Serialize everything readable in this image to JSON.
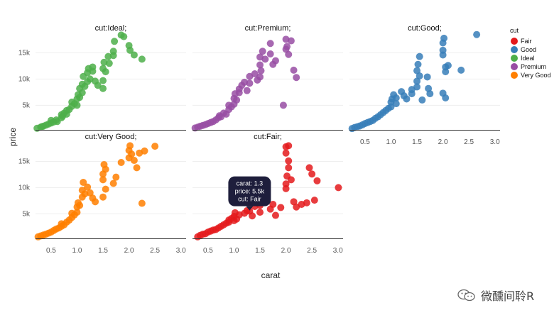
{
  "chart_data": {
    "type": "scatter",
    "facet_by": "cut",
    "xlabel": "carat",
    "ylabel": "price",
    "xlim": [
      0.2,
      3.1
    ],
    "ylim": [
      300,
      19000
    ],
    "x_ticks": [
      0.5,
      1.0,
      1.5,
      2.0,
      2.5,
      3.0
    ],
    "x_tick_labels": [
      "0.5",
      "1.0",
      "1.5",
      "2.0",
      "2.5",
      "3.0"
    ],
    "y_ticks": [
      5000,
      10000,
      15000
    ],
    "y_tick_labels": [
      "5k",
      "10k",
      "15k"
    ],
    "legend": {
      "title": "cut",
      "position": "right",
      "entries": [
        {
          "name": "Fair",
          "color": "#e41a1c"
        },
        {
          "name": "Good",
          "color": "#377eb8"
        },
        {
          "name": "Ideal",
          "color": "#4daf4a"
        },
        {
          "name": "Premium",
          "color": "#984ea3"
        },
        {
          "name": "Very Good",
          "color": "#ff7f00"
        }
      ]
    },
    "panels": [
      {
        "title": "cut:Ideal;",
        "series": "Ideal",
        "color": "#4daf4a",
        "points": [
          [
            0.23,
            600
          ],
          [
            0.3,
            800
          ],
          [
            0.32,
            900
          ],
          [
            0.35,
            1000
          ],
          [
            0.4,
            1200
          ],
          [
            0.45,
            1400
          ],
          [
            0.5,
            1600
          ],
          [
            0.5,
            2100
          ],
          [
            0.55,
            1800
          ],
          [
            0.6,
            2200
          ],
          [
            0.62,
            1900
          ],
          [
            0.7,
            2600
          ],
          [
            0.7,
            3200
          ],
          [
            0.72,
            2900
          ],
          [
            0.75,
            3500
          ],
          [
            0.8,
            3300
          ],
          [
            0.8,
            4000
          ],
          [
            0.85,
            4200
          ],
          [
            0.9,
            4800
          ],
          [
            0.9,
            5600
          ],
          [
            0.95,
            5300
          ],
          [
            1.0,
            5000
          ],
          [
            1.0,
            6200
          ],
          [
            1.02,
            7000
          ],
          [
            1.05,
            6500
          ],
          [
            1.05,
            8200
          ],
          [
            1.1,
            7400
          ],
          [
            1.1,
            9000
          ],
          [
            1.12,
            10500
          ],
          [
            1.15,
            8600
          ],
          [
            1.2,
            9500
          ],
          [
            1.2,
            11200
          ],
          [
            1.22,
            12000
          ],
          [
            1.25,
            10000
          ],
          [
            1.3,
            11500
          ],
          [
            1.3,
            12300
          ],
          [
            1.35,
            9600
          ],
          [
            1.4,
            8800
          ],
          [
            1.5,
            8200
          ],
          [
            1.5,
            9700
          ],
          [
            1.5,
            12000
          ],
          [
            1.52,
            13200
          ],
          [
            1.55,
            11400
          ],
          [
            1.6,
            14300
          ],
          [
            1.62,
            13000
          ],
          [
            1.7,
            14500
          ],
          [
            1.7,
            15300
          ],
          [
            1.72,
            17200
          ],
          [
            1.85,
            18400
          ],
          [
            1.9,
            18100
          ],
          [
            2.0,
            16400
          ],
          [
            2.02,
            15500
          ],
          [
            2.1,
            14600
          ],
          [
            2.25,
            13800
          ]
        ]
      },
      {
        "title": "cut:Premium;",
        "series": "Premium",
        "color": "#984ea3",
        "points": [
          [
            0.25,
            650
          ],
          [
            0.3,
            800
          ],
          [
            0.35,
            1000
          ],
          [
            0.4,
            1150
          ],
          [
            0.45,
            1300
          ],
          [
            0.5,
            1500
          ],
          [
            0.55,
            1700
          ],
          [
            0.6,
            1900
          ],
          [
            0.65,
            2200
          ],
          [
            0.7,
            2600
          ],
          [
            0.72,
            3000
          ],
          [
            0.75,
            2800
          ],
          [
            0.8,
            3500
          ],
          [
            0.85,
            3300
          ],
          [
            0.9,
            4200
          ],
          [
            0.9,
            5000
          ],
          [
            0.95,
            4700
          ],
          [
            1.0,
            5200
          ],
          [
            1.0,
            6300
          ],
          [
            1.02,
            7200
          ],
          [
            1.05,
            6000
          ],
          [
            1.1,
            8100
          ],
          [
            1.1,
            7400
          ],
          [
            1.15,
            8800
          ],
          [
            1.2,
            9400
          ],
          [
            1.25,
            7800
          ],
          [
            1.3,
            9200
          ],
          [
            1.3,
            10500
          ],
          [
            1.4,
            11000
          ],
          [
            1.45,
            9800
          ],
          [
            1.5,
            10400
          ],
          [
            1.5,
            12700
          ],
          [
            1.5,
            14200
          ],
          [
            1.52,
            11600
          ],
          [
            1.55,
            15300
          ],
          [
            1.6,
            13800
          ],
          [
            1.7,
            14800
          ],
          [
            1.7,
            16800
          ],
          [
            1.75,
            12800
          ],
          [
            1.8,
            13500
          ],
          [
            1.95,
            5000
          ],
          [
            2.0,
            15700
          ],
          [
            2.0,
            17600
          ],
          [
            2.02,
            16200
          ],
          [
            2.05,
            14700
          ],
          [
            2.1,
            17300
          ],
          [
            2.15,
            11700
          ],
          [
            2.2,
            10300
          ]
        ]
      },
      {
        "title": "cut:Good;",
        "series": "Good",
        "color": "#377eb8",
        "points": [
          [
            0.25,
            550
          ],
          [
            0.3,
            750
          ],
          [
            0.35,
            900
          ],
          [
            0.4,
            1050
          ],
          [
            0.45,
            1250
          ],
          [
            0.5,
            1500
          ],
          [
            0.55,
            1700
          ],
          [
            0.6,
            1900
          ],
          [
            0.65,
            2100
          ],
          [
            0.7,
            2500
          ],
          [
            0.75,
            2800
          ],
          [
            0.8,
            3200
          ],
          [
            0.85,
            3600
          ],
          [
            0.9,
            4000
          ],
          [
            0.95,
            4400
          ],
          [
            1.0,
            4700
          ],
          [
            1.0,
            5600
          ],
          [
            1.02,
            6200
          ],
          [
            1.05,
            7000
          ],
          [
            1.1,
            6400
          ],
          [
            1.1,
            5300
          ],
          [
            1.2,
            7600
          ],
          [
            1.25,
            6800
          ],
          [
            1.3,
            6200
          ],
          [
            1.4,
            7200
          ],
          [
            1.4,
            8000
          ],
          [
            1.5,
            8500
          ],
          [
            1.5,
            9600
          ],
          [
            1.5,
            11600
          ],
          [
            1.52,
            12800
          ],
          [
            1.55,
            10600
          ],
          [
            1.55,
            14300
          ],
          [
            1.6,
            6000
          ],
          [
            1.7,
            10400
          ],
          [
            1.72,
            8200
          ],
          [
            1.75,
            7200
          ],
          [
            2.0,
            14600
          ],
          [
            2.0,
            15500
          ],
          [
            2.0,
            16900
          ],
          [
            2.02,
            17800
          ],
          [
            2.05,
            12300
          ],
          [
            2.05,
            11400
          ],
          [
            2.1,
            12600
          ],
          [
            2.0,
            7300
          ],
          [
            2.05,
            6400
          ],
          [
            2.35,
            11700
          ],
          [
            2.65,
            18500
          ]
        ]
      },
      {
        "title": "cut:Very Good;",
        "series": "Very Good",
        "color": "#ff7f00",
        "points": [
          [
            0.25,
            600
          ],
          [
            0.3,
            780
          ],
          [
            0.35,
            950
          ],
          [
            0.4,
            1100
          ],
          [
            0.45,
            1300
          ],
          [
            0.5,
            1500
          ],
          [
            0.55,
            1800
          ],
          [
            0.6,
            2100
          ],
          [
            0.65,
            2300
          ],
          [
            0.7,
            2600
          ],
          [
            0.7,
            3100
          ],
          [
            0.75,
            2900
          ],
          [
            0.8,
            3400
          ],
          [
            0.85,
            3800
          ],
          [
            0.9,
            4300
          ],
          [
            0.9,
            5100
          ],
          [
            0.95,
            4800
          ],
          [
            1.0,
            5300
          ],
          [
            1.0,
            6300
          ],
          [
            1.02,
            7100
          ],
          [
            1.05,
            6600
          ],
          [
            1.1,
            8200
          ],
          [
            1.1,
            9500
          ],
          [
            1.12,
            11000
          ],
          [
            1.15,
            8800
          ],
          [
            1.2,
            10100
          ],
          [
            1.25,
            9000
          ],
          [
            1.3,
            8000
          ],
          [
            1.35,
            7300
          ],
          [
            1.5,
            12600
          ],
          [
            1.5,
            11500
          ],
          [
            1.52,
            14400
          ],
          [
            1.55,
            13500
          ],
          [
            1.5,
            8200
          ],
          [
            1.55,
            9700
          ],
          [
            1.7,
            10800
          ],
          [
            1.75,
            12000
          ],
          [
            1.85,
            14800
          ],
          [
            2.0,
            15700
          ],
          [
            2.0,
            17100
          ],
          [
            2.02,
            18000
          ],
          [
            2.05,
            16400
          ],
          [
            2.1,
            15200
          ],
          [
            2.15,
            13800
          ],
          [
            2.2,
            16600
          ],
          [
            2.25,
            7000
          ],
          [
            2.3,
            17000
          ],
          [
            2.5,
            17900
          ]
        ]
      },
      {
        "title": "cut:Fair;",
        "series": "Fair",
        "color": "#e41a1c",
        "points": [
          [
            0.3,
            600
          ],
          [
            0.35,
            900
          ],
          [
            0.4,
            1100
          ],
          [
            0.45,
            1200
          ],
          [
            0.5,
            1500
          ],
          [
            0.55,
            1700
          ],
          [
            0.6,
            1900
          ],
          [
            0.65,
            2000
          ],
          [
            0.7,
            2300
          ],
          [
            0.75,
            2600
          ],
          [
            0.8,
            2900
          ],
          [
            0.85,
            3200
          ],
          [
            0.9,
            3400
          ],
          [
            0.9,
            3800
          ],
          [
            0.95,
            4100
          ],
          [
            1.0,
            3700
          ],
          [
            1.0,
            4500
          ],
          [
            1.02,
            5200
          ],
          [
            1.05,
            4000
          ],
          [
            1.1,
            4800
          ],
          [
            1.2,
            5100
          ],
          [
            1.25,
            5600
          ],
          [
            1.3,
            5500
          ],
          [
            1.35,
            4600
          ],
          [
            1.4,
            6400
          ],
          [
            1.45,
            7100
          ],
          [
            1.5,
            5300
          ],
          [
            1.5,
            6600
          ],
          [
            1.5,
            8400
          ],
          [
            1.52,
            9200
          ],
          [
            1.55,
            7600
          ],
          [
            1.6,
            7300
          ],
          [
            1.7,
            5900
          ],
          [
            1.75,
            6800
          ],
          [
            1.8,
            4700
          ],
          [
            1.9,
            6200
          ],
          [
            2.0,
            9800
          ],
          [
            2.0,
            10700
          ],
          [
            2.02,
            12200
          ],
          [
            2.05,
            13800
          ],
          [
            2.1,
            11500
          ],
          [
            2.0,
            16600
          ],
          [
            2.05,
            15100
          ],
          [
            2.0,
            17800
          ],
          [
            2.05,
            18000
          ],
          [
            2.15,
            7300
          ],
          [
            2.2,
            6300
          ],
          [
            2.3,
            6800
          ],
          [
            2.4,
            7100
          ],
          [
            2.45,
            13800
          ],
          [
            2.5,
            12600
          ],
          [
            2.55,
            7600
          ],
          [
            2.6,
            11300
          ],
          [
            3.01,
            10000
          ]
        ]
      }
    ],
    "tooltip": {
      "panel": "cut:Fair;",
      "x": 1.3,
      "y": 5500,
      "lines": [
        "carat: 1.3",
        "price: 5.5k",
        "cut: Fair"
      ]
    }
  },
  "watermark": {
    "text": "微醺间聆R",
    "icon": "wechat-icon"
  }
}
